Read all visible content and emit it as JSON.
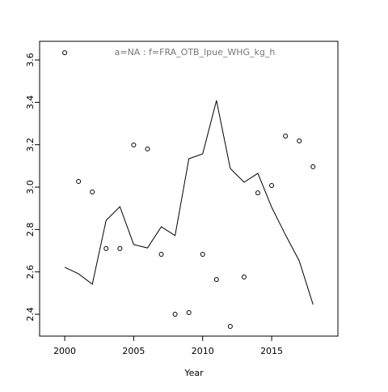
{
  "chart_data": {
    "type": "line",
    "title": "a=NA  :  f=FRA_OTB_lpue_WHG_kg_h",
    "x_label": "Year",
    "x": [
      2000,
      2001,
      2002,
      2003,
      2004,
      2005,
      2006,
      2007,
      2008,
      2009,
      2010,
      2011,
      2012,
      2013,
      2014,
      2015,
      2016,
      2017,
      2018
    ],
    "series": [
      {
        "style": "points",
        "color": "#000000",
        "values": [
          3.634,
          3.027,
          2.977,
          2.71,
          2.71,
          3.199,
          3.18,
          2.683,
          2.4,
          2.408,
          2.683,
          2.564,
          2.343,
          2.576,
          2.973,
          3.008,
          3.241,
          3.218,
          3.096
        ]
      },
      {
        "style": "line",
        "color": "#000000",
        "values": [
          2.622,
          2.591,
          2.542,
          2.843,
          2.908,
          2.729,
          2.713,
          2.813,
          2.771,
          3.134,
          3.157,
          3.409,
          3.088,
          3.023,
          3.065,
          2.905,
          2.775,
          2.652,
          2.446
        ]
      }
    ],
    "xlim": [
      1998.18,
      2019.8
    ],
    "ylim": [
      2.297,
      3.688
    ],
    "xticks": [
      2000,
      2005,
      2010,
      2015
    ],
    "yticks": [
      2.4,
      2.6,
      2.8,
      {
        "value": 3,
        "label": "3.0"
      },
      3.2,
      3.4,
      3.6
    ]
  }
}
